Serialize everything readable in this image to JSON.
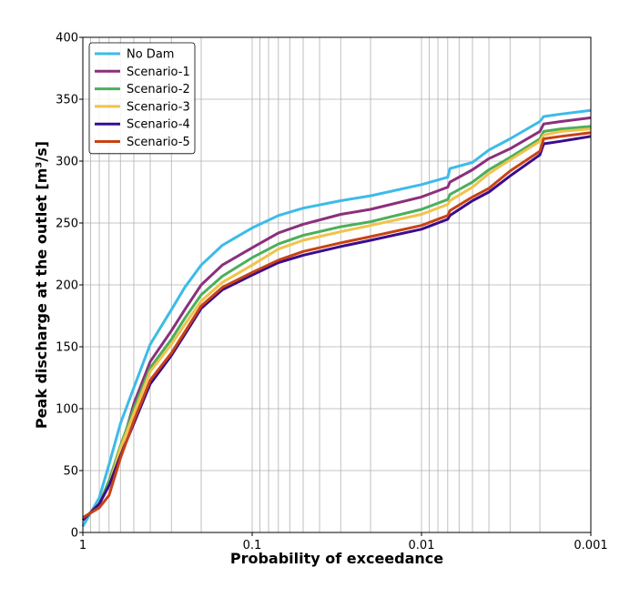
{
  "chart_data": {
    "type": "line",
    "xlabel": "Probability of exceedance",
    "ylabel": "Peak discharge at the outlet [m³/s]",
    "x_scale": "log-reversed",
    "xlim": [
      1,
      0.001
    ],
    "ylim": [
      0,
      400
    ],
    "x_ticks": [
      1,
      0.1,
      0.01,
      0.001
    ],
    "x_tick_labels": [
      "1",
      "0.1",
      "0.01",
      "0.001"
    ],
    "y_ticks": [
      0,
      50,
      100,
      150,
      200,
      250,
      300,
      350,
      400
    ],
    "y_tick_labels": [
      "0",
      "50",
      "100",
      "150",
      "200",
      "250",
      "300",
      "350",
      "400"
    ],
    "grid": true,
    "legend_position": "upper-left",
    "x": [
      1,
      0.8,
      0.7,
      0.6,
      0.5,
      0.4,
      0.3,
      0.25,
      0.2,
      0.15,
      0.1,
      0.07,
      0.05,
      0.03,
      0.02,
      0.01,
      0.007,
      0.0068,
      0.005,
      0.004,
      0.003,
      0.002,
      0.0019,
      0.0015,
      0.001
    ],
    "series": [
      {
        "name": "No Dam",
        "color": "#3dbbe8",
        "values": [
          5,
          28,
          55,
          88,
          117,
          152,
          180,
          198,
          216,
          232,
          246,
          256,
          262,
          268,
          272,
          281,
          287,
          294,
          299,
          309,
          318,
          332,
          336,
          338,
          341
        ]
      },
      {
        "name": "Scenario-1",
        "color": "#8b2f7b",
        "values": [
          10,
          23,
          38,
          66,
          104,
          138,
          163,
          180,
          200,
          216,
          230,
          242,
          249,
          257,
          261,
          271,
          279,
          283,
          293,
          302,
          310,
          324,
          330,
          332,
          335
        ]
      },
      {
        "name": "Scenario-2",
        "color": "#4caf5a",
        "values": [
          10,
          23,
          42,
          70,
          100,
          133,
          156,
          173,
          192,
          207,
          222,
          233,
          240,
          247,
          251,
          261,
          269,
          273,
          283,
          293,
          303,
          318,
          324,
          326,
          328
        ]
      },
      {
        "name": "Scenario-3",
        "color": "#f2c24a",
        "values": [
          10,
          23,
          38,
          68,
          96,
          130,
          152,
          168,
          187,
          202,
          216,
          229,
          236,
          243,
          248,
          257,
          265,
          268,
          279,
          290,
          301,
          316,
          321,
          324,
          326
        ]
      },
      {
        "name": "Scenario-4",
        "color": "#3a0c8e",
        "values": [
          10,
          23,
          38,
          62,
          88,
          120,
          143,
          160,
          181,
          196,
          208,
          218,
          224,
          231,
          236,
          245,
          253,
          256,
          268,
          275,
          288,
          305,
          314,
          316,
          320
        ]
      },
      {
        "name": "Scenario-5",
        "color": "#c84214",
        "values": [
          12,
          20,
          30,
          60,
          90,
          123,
          145,
          162,
          183,
          198,
          210,
          220,
          227,
          234,
          239,
          248,
          256,
          260,
          271,
          278,
          292,
          308,
          318,
          320,
          323
        ]
      }
    ]
  }
}
